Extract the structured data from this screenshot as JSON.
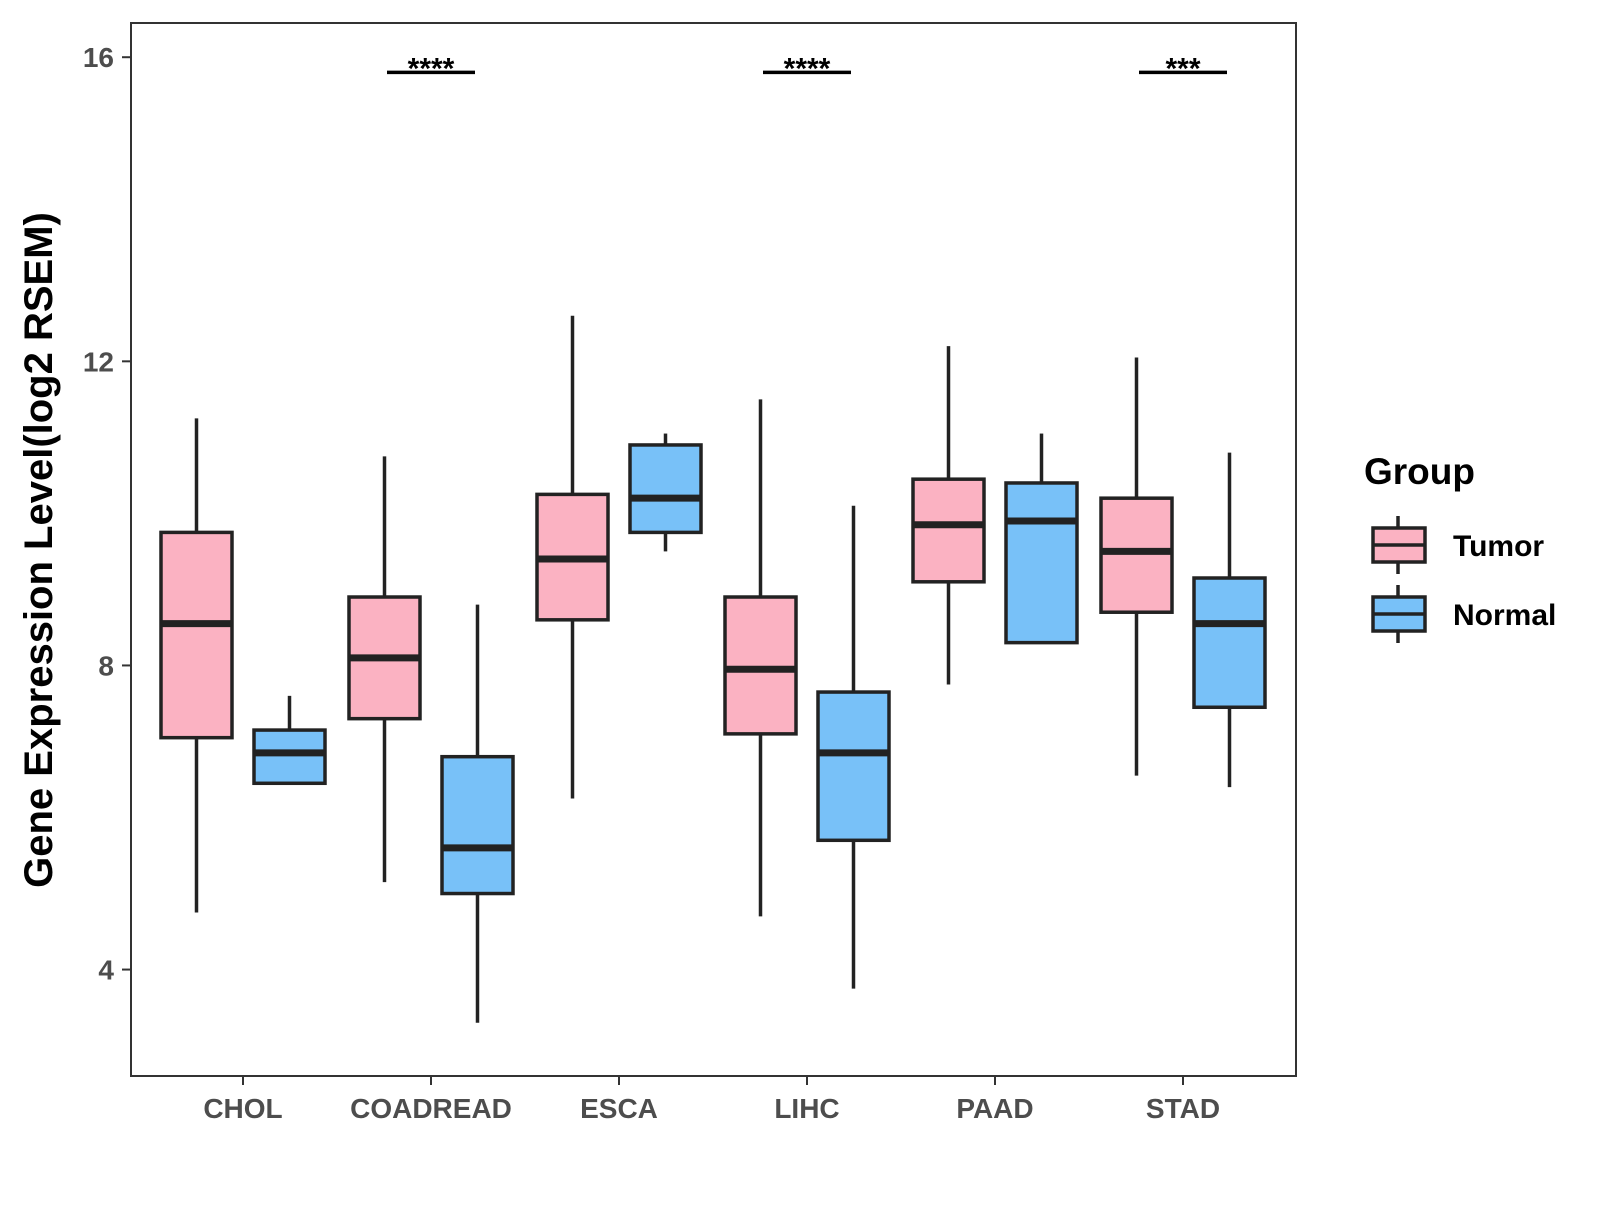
{
  "chart_data": {
    "type": "boxplot",
    "title": "",
    "xlabel": "",
    "ylabel": "Gene Expression Level(log2 RSEM)",
    "ylim": [
      2.6,
      16.45
    ],
    "yticks": [
      4,
      8,
      12,
      16
    ],
    "ytick_labels": [
      "4",
      "8",
      "12",
      "16"
    ],
    "categories": [
      "CHOL",
      "COADREAD",
      "ESCA",
      "LIHC",
      "PAAD",
      "STAD"
    ],
    "legend": {
      "title": "Group",
      "position": "right",
      "entries": [
        "Tumor",
        "Normal"
      ]
    },
    "series": [
      {
        "name": "Tumor",
        "color": "#fbb2c2",
        "boxes": [
          {
            "category": "CHOL",
            "min": 4.75,
            "q1": 7.05,
            "median": 8.55,
            "q3": 9.75,
            "max": 11.25
          },
          {
            "category": "COADREAD",
            "min": 5.15,
            "q1": 7.3,
            "median": 8.1,
            "q3": 8.9,
            "max": 10.75
          },
          {
            "category": "ESCA",
            "min": 6.25,
            "q1": 8.6,
            "median": 9.4,
            "q3": 10.25,
            "max": 12.6
          },
          {
            "category": "LIHC",
            "min": 4.7,
            "q1": 7.1,
            "median": 7.95,
            "q3": 8.9,
            "max": 11.5
          },
          {
            "category": "PAAD",
            "min": 7.75,
            "q1": 9.1,
            "median": 9.85,
            "q3": 10.45,
            "max": 12.2
          },
          {
            "category": "STAD",
            "min": 6.55,
            "q1": 8.7,
            "median": 9.5,
            "q3": 10.2,
            "max": 12.05
          }
        ]
      },
      {
        "name": "Normal",
        "color": "#78c1f8",
        "boxes": [
          {
            "category": "CHOL",
            "min": 6.45,
            "q1": 6.45,
            "median": 6.85,
            "q3": 7.15,
            "max": 7.6
          },
          {
            "category": "COADREAD",
            "min": 3.3,
            "q1": 5.0,
            "median": 5.6,
            "q3": 6.8,
            "max": 8.8
          },
          {
            "category": "ESCA",
            "min": 9.5,
            "q1": 9.75,
            "median": 10.2,
            "q3": 10.9,
            "max": 11.05
          },
          {
            "category": "LIHC",
            "min": 3.75,
            "q1": 5.7,
            "median": 6.85,
            "q3": 7.65,
            "max": 10.1
          },
          {
            "category": "PAAD",
            "min": 8.3,
            "q1": 8.3,
            "median": 9.9,
            "q3": 10.4,
            "max": 11.05
          },
          {
            "category": "STAD",
            "min": 6.4,
            "q1": 7.45,
            "median": 8.55,
            "q3": 9.15,
            "max": 10.8
          }
        ]
      }
    ],
    "annotations": [
      {
        "category": "COADREAD",
        "label": "****",
        "y": 15.8
      },
      {
        "category": "LIHC",
        "label": "****",
        "y": 15.8
      },
      {
        "category": "STAD",
        "label": "***",
        "y": 15.8
      }
    ]
  }
}
